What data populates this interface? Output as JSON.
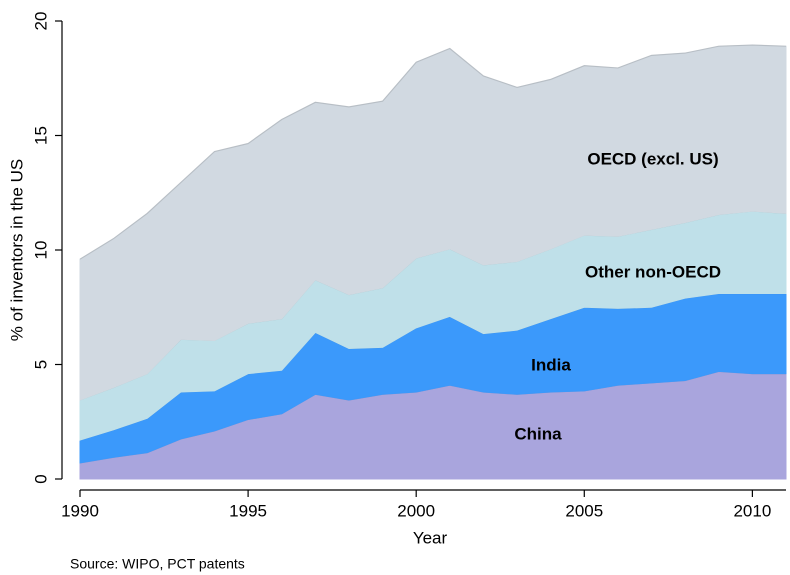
{
  "chart_data": {
    "type": "stacked-area",
    "x_label": "Year",
    "y_label": "% of inventors in the US",
    "note": "Source: WIPO, PCT patents",
    "x": [
      1990,
      1991,
      1992,
      1993,
      1994,
      1995,
      1996,
      1997,
      1998,
      1999,
      2000,
      2001,
      2002,
      2003,
      2004,
      2005,
      2006,
      2007,
      2008,
      2009,
      2010,
      2011
    ],
    "series": [
      {
        "name": "China",
        "color": "#a9a5dd",
        "values": [
          0.7,
          0.95,
          1.15,
          1.75,
          2.1,
          2.6,
          2.85,
          3.7,
          3.45,
          3.7,
          3.8,
          4.1,
          3.8,
          3.7,
          3.8,
          3.85,
          4.1,
          4.2,
          4.3,
          4.7,
          4.6,
          4.6
        ]
      },
      {
        "name": "India",
        "color": "#3b99fb",
        "values": [
          1.0,
          1.2,
          1.5,
          2.05,
          1.75,
          2.0,
          1.9,
          2.7,
          2.25,
          2.05,
          2.8,
          3.0,
          2.55,
          2.8,
          3.2,
          3.65,
          3.35,
          3.3,
          3.6,
          3.4,
          3.5,
          3.5
        ]
      },
      {
        "name": "Other non-OECD",
        "color": "#bfe0e9",
        "values": [
          1.75,
          1.85,
          1.95,
          2.3,
          2.2,
          2.2,
          2.25,
          2.3,
          2.35,
          2.6,
          3.05,
          2.95,
          3.0,
          3.0,
          3.05,
          3.15,
          3.15,
          3.4,
          3.3,
          3.45,
          3.6,
          3.5
        ]
      },
      {
        "name": "OECD (excl. US)",
        "color": "#d1d9e1",
        "values": [
          6.15,
          6.5,
          7.0,
          6.85,
          8.25,
          7.85,
          8.7,
          7.75,
          8.2,
          8.15,
          8.55,
          8.75,
          8.25,
          7.6,
          7.4,
          7.4,
          7.35,
          7.6,
          7.4,
          7.35,
          7.25,
          7.3
        ]
      }
    ],
    "xlim": [
      1990,
      2011
    ],
    "xticks": [
      1990,
      1995,
      2000,
      2005,
      2010
    ],
    "ylim": [
      0,
      20
    ],
    "yticks": [
      0,
      5,
      10,
      15,
      20
    ]
  }
}
